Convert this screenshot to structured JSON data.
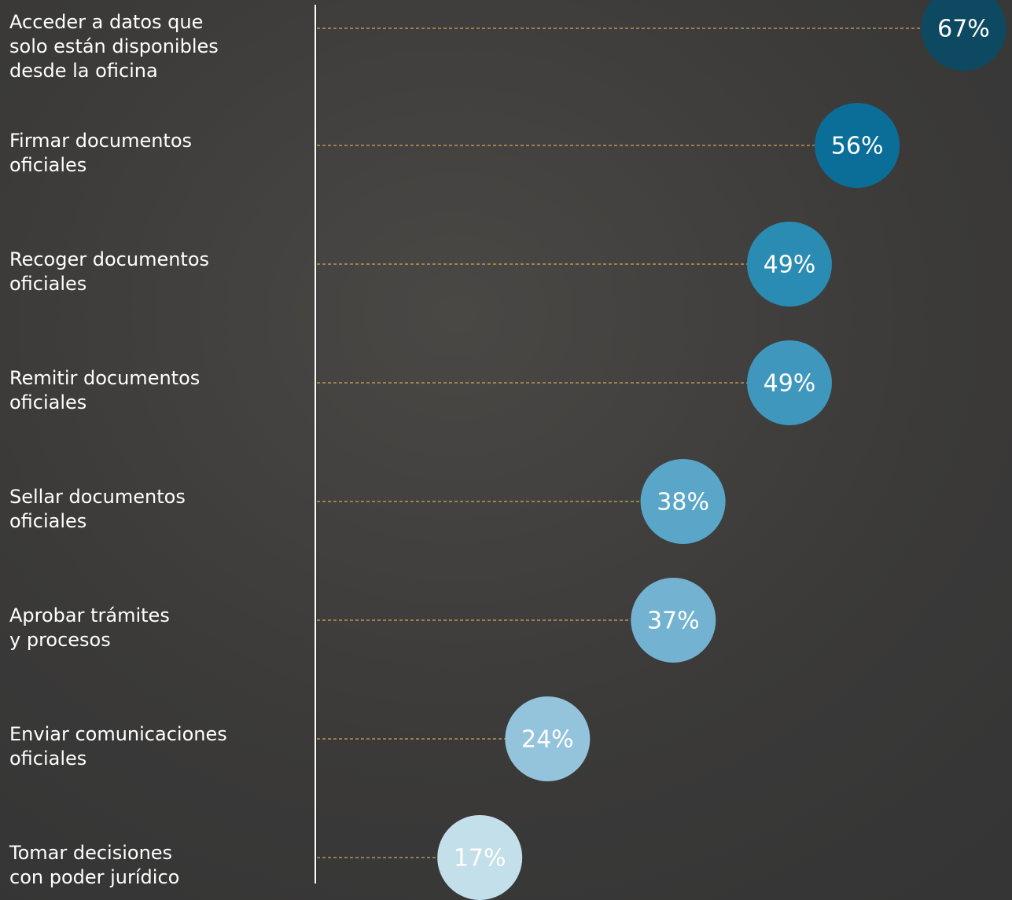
{
  "chart_data": {
    "type": "dot",
    "categories": [
      [
        "Acceder a datos que",
        "solo están disponibles",
        "desde la oficina"
      ],
      [
        "Firmar documentos",
        "oficiales"
      ],
      [
        "Recoger documentos",
        "oficiales"
      ],
      [
        "Remitir documentos",
        "oficiales"
      ],
      [
        "Sellar documentos",
        "oficiales"
      ],
      [
        "Aprobar trámites",
        "y procesos"
      ],
      [
        "Enviar comunicaciones",
        "oficiales"
      ],
      [
        "Tomar decisiones",
        "con poder jurídico"
      ]
    ],
    "values": [
      67,
      56,
      49,
      49,
      38,
      37,
      24,
      17
    ],
    "value_labels": [
      "67%",
      "56%",
      "49%",
      "49%",
      "38%",
      "37%",
      "24%",
      "17%"
    ],
    "colors": [
      "#0d4a62",
      "#0a6e99",
      "#2a8bb3",
      "#3f97bd",
      "#5aa6c8",
      "#73b3d1",
      "#93c4dc",
      "#c3dfea"
    ],
    "xlim": [
      0,
      72
    ]
  }
}
